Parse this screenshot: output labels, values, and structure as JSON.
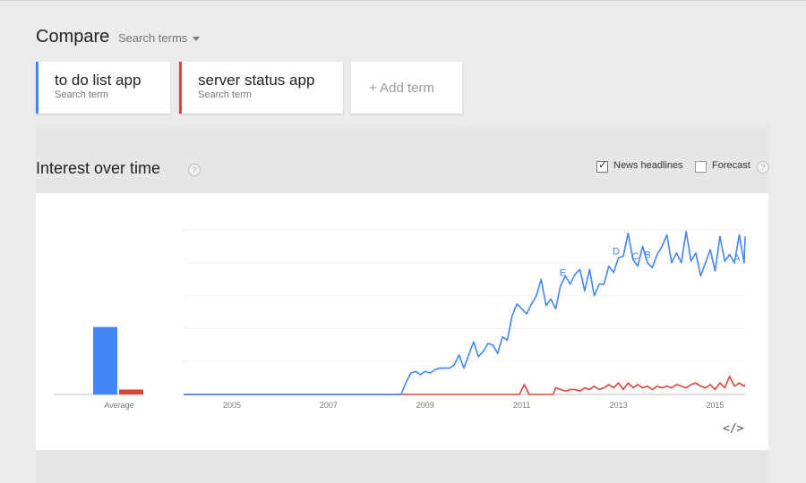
{
  "header": {
    "title": "Compare",
    "search_terms_label": "Search terms"
  },
  "terms": [
    {
      "name": "to do list app",
      "sub": "Search term",
      "color": "#4285f4"
    },
    {
      "name": "server status app",
      "sub": "Search term",
      "color": "#db4437"
    }
  ],
  "add_term_label": "+ Add term",
  "interest": {
    "title": "Interest over time",
    "help": "?",
    "news_headlines_label": "News headlines",
    "news_headlines_checked": true,
    "forecast_label": "Forecast",
    "forecast_checked": false,
    "embed_icon": "</>"
  },
  "chart_data": {
    "type": "line",
    "xlim": [
      2004,
      2015.62
    ],
    "ylim": [
      0,
      100
    ],
    "grid": true,
    "x_ticks": [
      2005,
      2007,
      2009,
      2011,
      2013,
      2015
    ],
    "series": [
      {
        "name": "to do list app",
        "color": "#4285f4",
        "points": [
          [
            2004.0,
            0
          ],
          [
            2008.5,
            0
          ],
          [
            2008.6,
            7
          ],
          [
            2008.7,
            13
          ],
          [
            2008.8,
            14
          ],
          [
            2008.9,
            12
          ],
          [
            2009.0,
            14
          ],
          [
            2009.1,
            13
          ],
          [
            2009.2,
            15
          ],
          [
            2009.3,
            16
          ],
          [
            2009.4,
            16
          ],
          [
            2009.5,
            16
          ],
          [
            2009.6,
            18
          ],
          [
            2009.7,
            24
          ],
          [
            2009.8,
            16
          ],
          [
            2009.9,
            24
          ],
          [
            2010.0,
            32
          ],
          [
            2010.1,
            23
          ],
          [
            2010.2,
            26
          ],
          [
            2010.3,
            31
          ],
          [
            2010.4,
            30
          ],
          [
            2010.5,
            25
          ],
          [
            2010.6,
            35
          ],
          [
            2010.7,
            33
          ],
          [
            2010.8,
            48
          ],
          [
            2010.9,
            55
          ],
          [
            2011.0,
            52
          ],
          [
            2011.1,
            49
          ],
          [
            2011.2,
            55
          ],
          [
            2011.3,
            60
          ],
          [
            2011.4,
            70
          ],
          [
            2011.5,
            54
          ],
          [
            2011.6,
            58
          ],
          [
            2011.7,
            52
          ],
          [
            2011.8,
            66
          ],
          [
            2011.9,
            72
          ],
          [
            2012.0,
            67
          ],
          [
            2012.1,
            73
          ],
          [
            2012.2,
            76
          ],
          [
            2012.3,
            63
          ],
          [
            2012.4,
            76
          ],
          [
            2012.5,
            60
          ],
          [
            2012.6,
            67
          ],
          [
            2012.7,
            67
          ],
          [
            2012.8,
            78
          ],
          [
            2012.9,
            74
          ],
          [
            2013.0,
            83
          ],
          [
            2013.1,
            84
          ],
          [
            2013.2,
            98
          ],
          [
            2013.3,
            82
          ],
          [
            2013.4,
            78
          ],
          [
            2013.5,
            90
          ],
          [
            2013.6,
            80
          ],
          [
            2013.7,
            77
          ],
          [
            2013.8,
            85
          ],
          [
            2013.9,
            90
          ],
          [
            2014.0,
            97
          ],
          [
            2014.1,
            80
          ],
          [
            2014.2,
            86
          ],
          [
            2014.3,
            80
          ],
          [
            2014.4,
            99
          ],
          [
            2014.5,
            81
          ],
          [
            2014.6,
            86
          ],
          [
            2014.7,
            72
          ],
          [
            2014.8,
            80
          ],
          [
            2014.9,
            88
          ],
          [
            2015.0,
            75
          ],
          [
            2015.1,
            96
          ],
          [
            2015.2,
            81
          ],
          [
            2015.3,
            85
          ],
          [
            2015.4,
            80
          ],
          [
            2015.5,
            97
          ],
          [
            2015.6,
            80
          ],
          [
            2015.62,
            96
          ]
        ],
        "average": 41
      },
      {
        "name": "server status app",
        "color": "#db4437",
        "points": [
          [
            2004.0,
            0
          ],
          [
            2010.95,
            0
          ],
          [
            2011.05,
            6
          ],
          [
            2011.15,
            0
          ],
          [
            2011.65,
            0
          ],
          [
            2011.7,
            4
          ],
          [
            2011.8,
            3
          ],
          [
            2011.9,
            2
          ],
          [
            2012.0,
            3
          ],
          [
            2012.1,
            3
          ],
          [
            2012.2,
            2
          ],
          [
            2012.3,
            4
          ],
          [
            2012.4,
            3
          ],
          [
            2012.5,
            5
          ],
          [
            2012.6,
            3
          ],
          [
            2012.7,
            4
          ],
          [
            2012.8,
            6
          ],
          [
            2012.9,
            4
          ],
          [
            2013.0,
            7
          ],
          [
            2013.1,
            3
          ],
          [
            2013.2,
            7
          ],
          [
            2013.3,
            4
          ],
          [
            2013.4,
            6
          ],
          [
            2013.5,
            4
          ],
          [
            2013.6,
            5
          ],
          [
            2013.7,
            3
          ],
          [
            2013.8,
            5
          ],
          [
            2013.9,
            4
          ],
          [
            2014.0,
            5
          ],
          [
            2014.1,
            4
          ],
          [
            2014.2,
            6
          ],
          [
            2014.3,
            5
          ],
          [
            2014.4,
            4
          ],
          [
            2014.5,
            6
          ],
          [
            2014.6,
            7
          ],
          [
            2014.7,
            5
          ],
          [
            2014.8,
            4
          ],
          [
            2014.9,
            6
          ],
          [
            2015.0,
            3
          ],
          [
            2015.1,
            7
          ],
          [
            2015.2,
            4
          ],
          [
            2015.3,
            11
          ],
          [
            2015.4,
            5
          ],
          [
            2015.5,
            7
          ],
          [
            2015.6,
            5
          ],
          [
            2015.62,
            6
          ]
        ],
        "average": 3
      }
    ],
    "average_label": "Average",
    "annotations": [
      {
        "label": "E",
        "x": 2011.85,
        "y": 72
      },
      {
        "label": "D",
        "x": 2012.95,
        "y": 85
      },
      {
        "label": "C",
        "x": 2013.35,
        "y": 82
      },
      {
        "label": "B",
        "x": 2013.6,
        "y": 83
      },
      {
        "label": "A",
        "x": 2015.45,
        "y": 81
      }
    ]
  }
}
